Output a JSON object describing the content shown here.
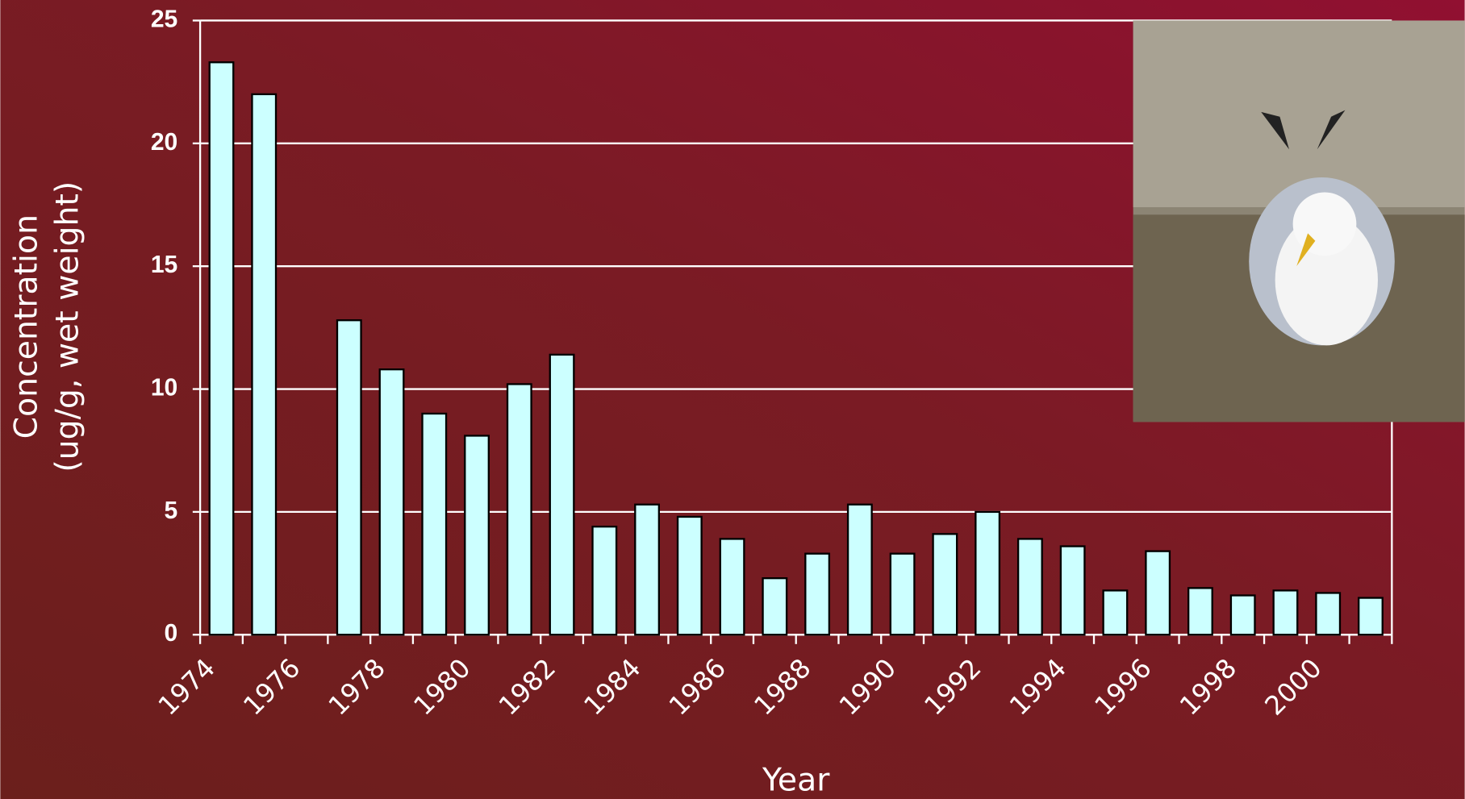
{
  "chart_data": {
    "type": "bar",
    "xlabel": "Year",
    "ylabel": [
      "Concentration",
      "(ug/g, wet weight)"
    ],
    "categories": [
      "1974",
      null,
      "1976",
      null,
      "1978",
      null,
      "1980",
      null,
      "1982",
      null,
      "1984",
      null,
      "1986",
      null,
      "1988",
      null,
      "1990",
      null,
      "1992",
      null,
      "1994",
      null,
      "1996",
      null,
      "1998",
      null,
      "2000",
      null
    ],
    "values": [
      23.3,
      22,
      null,
      12.8,
      10.8,
      9.0,
      8.1,
      10.2,
      11.4,
      4.4,
      5.3,
      4.8,
      3.9,
      2.3,
      3.3,
      5.3,
      3.3,
      4.1,
      5.0,
      3.9,
      3.6,
      1.8,
      3.4,
      1.9,
      1.6,
      1.8,
      1.7,
      1.5
    ],
    "color": "#ccffff",
    "ylim": [
      0,
      25
    ],
    "yticks": [
      0,
      5,
      10,
      15,
      20,
      25
    ],
    "grid": true
  }
}
